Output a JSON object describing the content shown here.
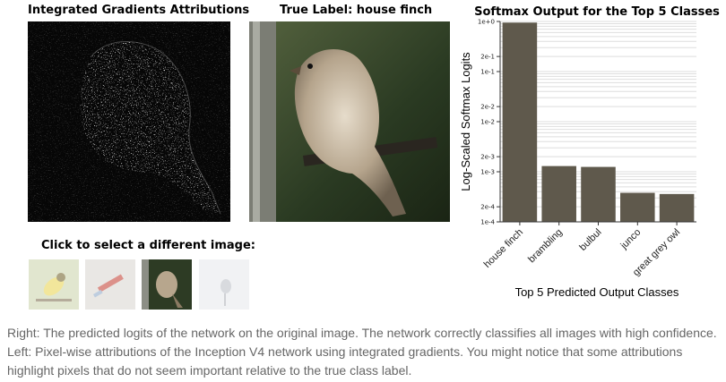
{
  "left_panel": {
    "title": "Integrated Gradients Attributions"
  },
  "middle_panel": {
    "title": "True Label: house finch"
  },
  "selector": {
    "title": "Click to select a different image:",
    "thumbnails": [
      {
        "name": "thumb-goldfinch",
        "selected": false
      },
      {
        "name": "thumb-pen",
        "selected": false
      },
      {
        "name": "thumb-house-finch",
        "selected": true
      },
      {
        "name": "thumb-snow-bird",
        "selected": false
      }
    ]
  },
  "chart_data": {
    "type": "bar",
    "title": "Softmax Output for the Top 5 Classes",
    "xlabel": "Top 5 Predicted Output Classes",
    "ylabel": "Log-Scaled Softmax Logits",
    "yscale": "log",
    "ylim": [
      0.0001,
      1
    ],
    "yticks": [
      {
        "v": 1,
        "label": "1e+0"
      },
      {
        "v": 0.2,
        "label": "2e-1"
      },
      {
        "v": 0.1,
        "label": "1e-1"
      },
      {
        "v": 0.02,
        "label": "2e-2"
      },
      {
        "v": 0.01,
        "label": "1e-2"
      },
      {
        "v": 0.002,
        "label": "2e-3"
      },
      {
        "v": 0.001,
        "label": "1e-3"
      },
      {
        "v": 0.0002,
        "label": "2e-4"
      },
      {
        "v": 0.0001,
        "label": "1e-4"
      }
    ],
    "categories": [
      "house finch",
      "brambling",
      "bulbul",
      "junco",
      "great grey owl"
    ],
    "values": [
      0.95,
      0.0013,
      0.00125,
      0.00038,
      0.00036
    ],
    "grid": true,
    "bar_color": "#5f594c"
  },
  "caption": "Right: The predicted logits of the network on the original image. The network correctly classifies all images with high confidence. Left: Pixel-wise attributions of the Inception V4 network using integrated gradients. You might notice that some attributions highlight pixels that do not seem important relative to the true class label."
}
